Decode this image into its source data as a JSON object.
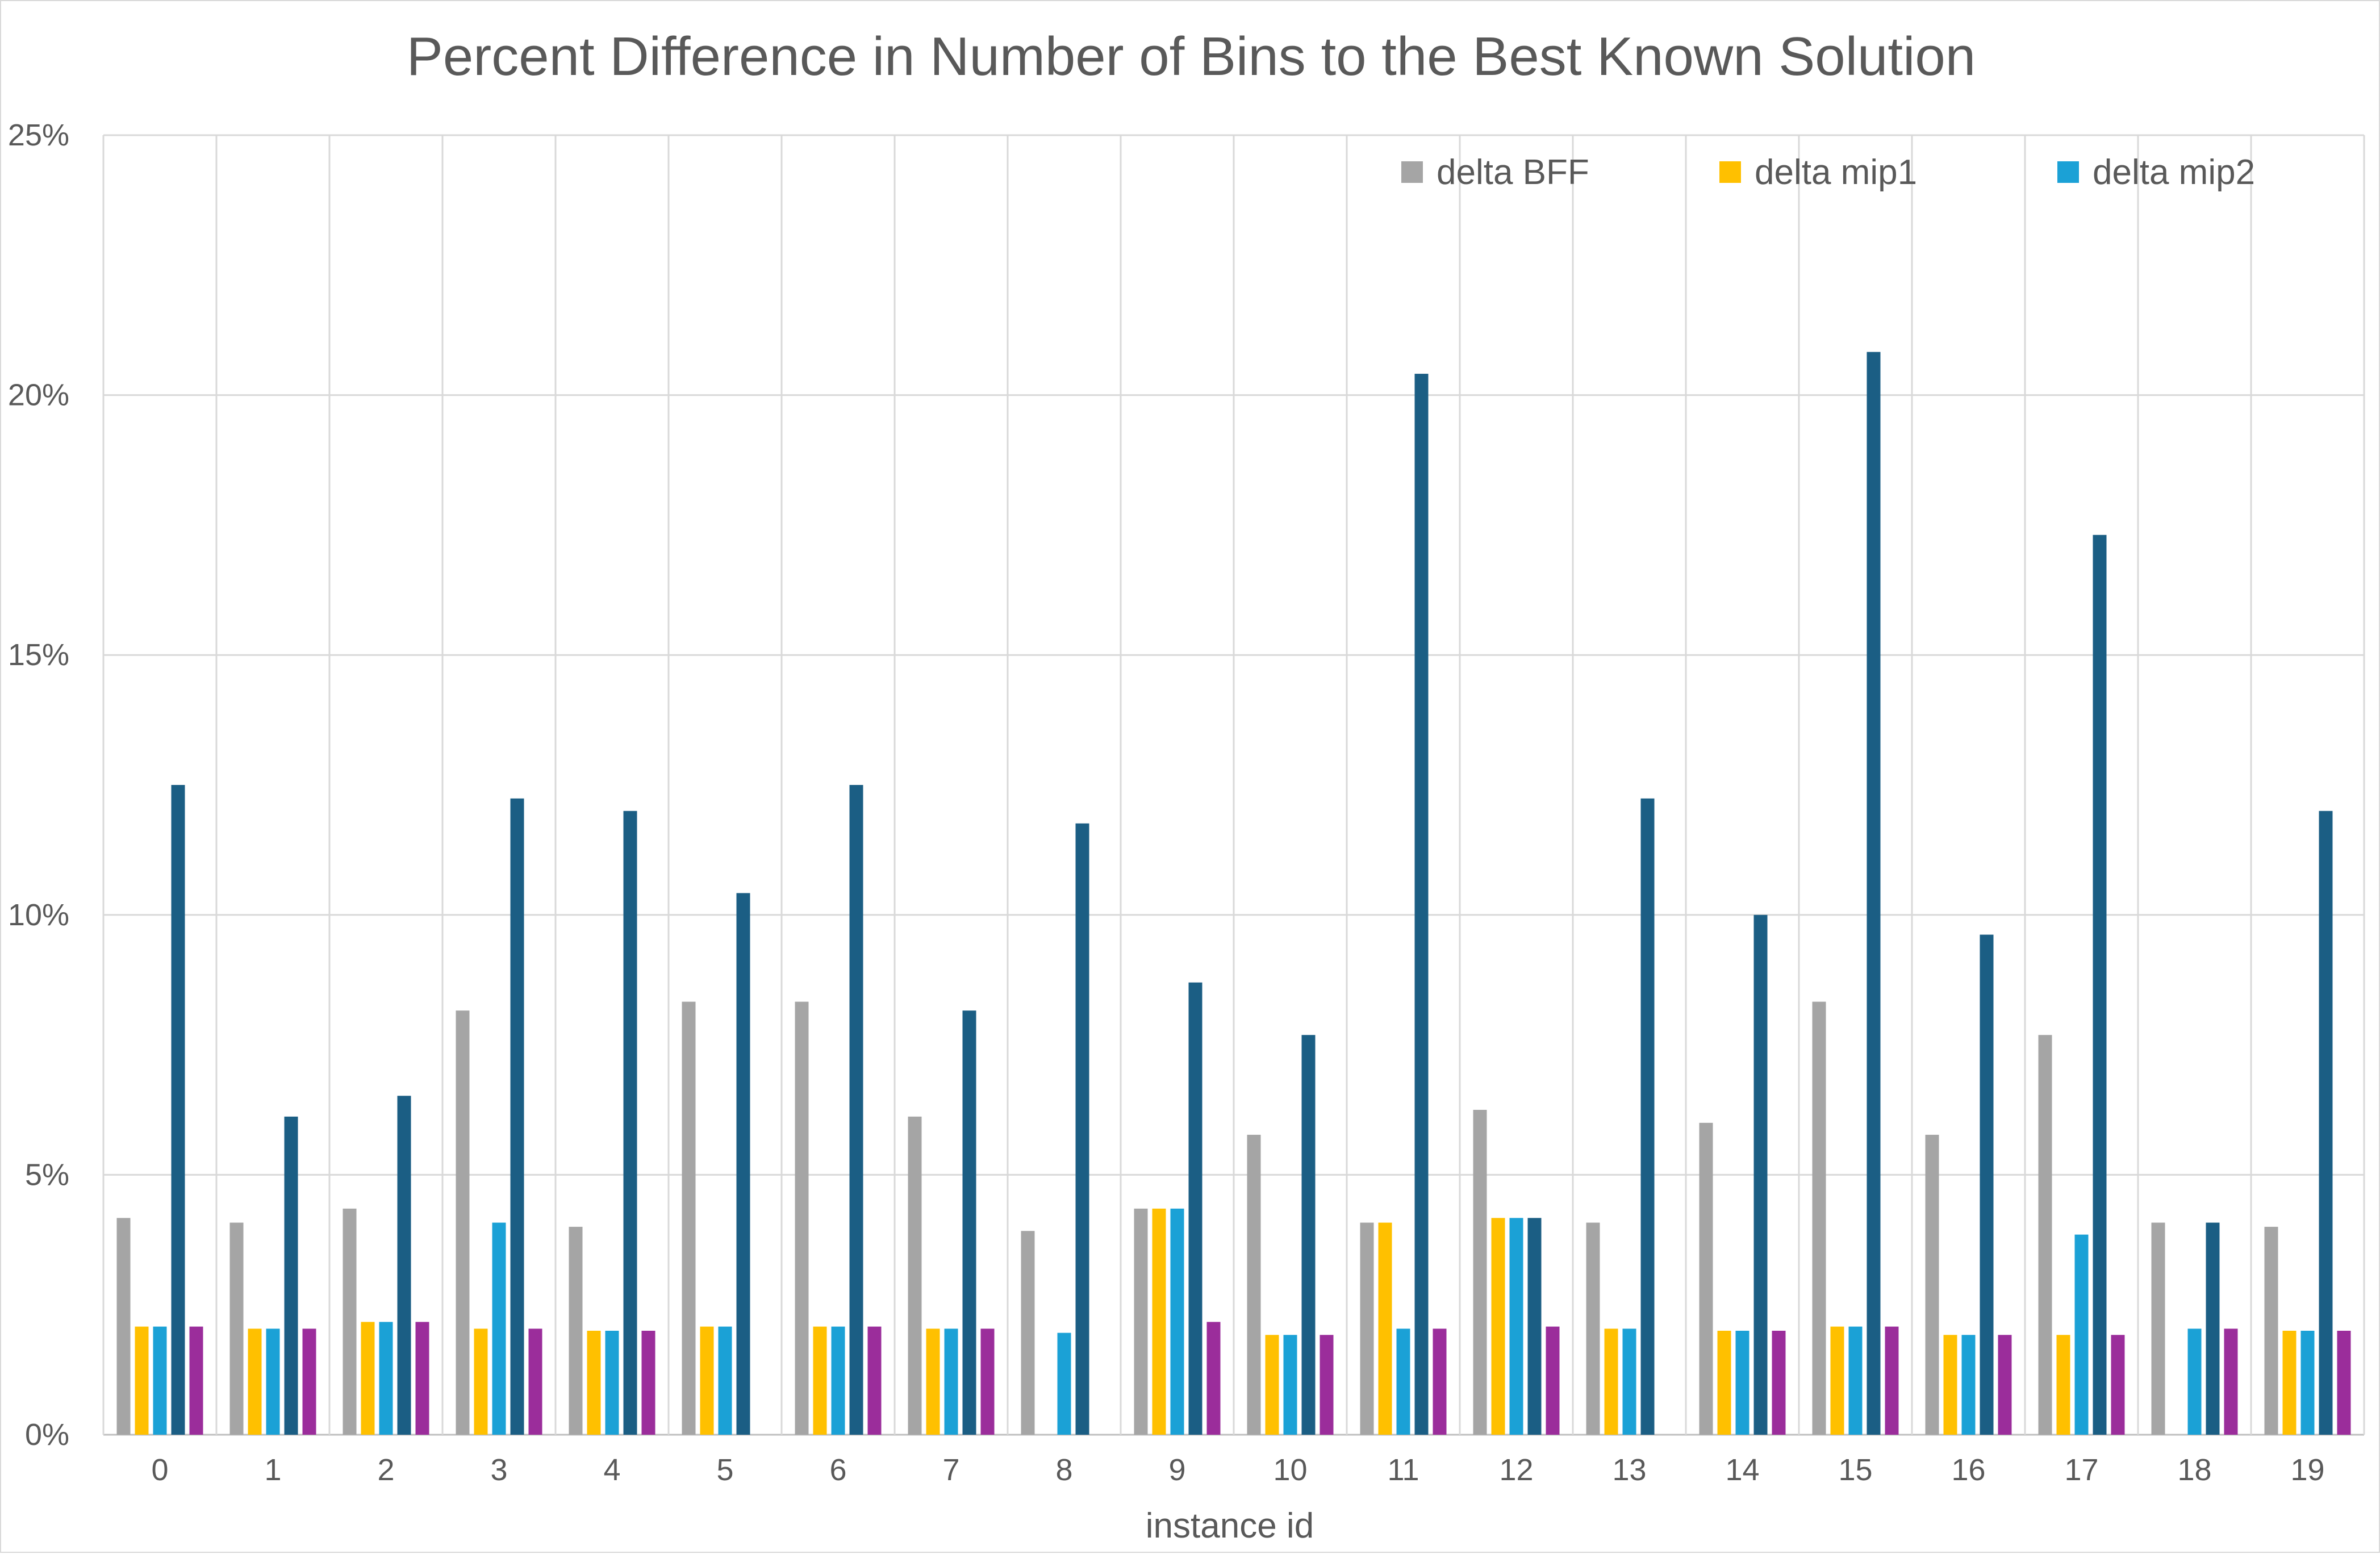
{
  "chart_data": {
    "type": "bar",
    "title": "Percent Difference in Number of Bins to the Best Known Solution",
    "xlabel": "instance id",
    "ylabel": "",
    "ylim": [
      0,
      25
    ],
    "yticks": [
      "0%",
      "5%",
      "10%",
      "15%",
      "20%",
      "25%"
    ],
    "grid": true,
    "legend_position": "top-right",
    "categories": [
      "0",
      "1",
      "2",
      "3",
      "4",
      "5",
      "6",
      "7",
      "8",
      "9",
      "10",
      "11",
      "12",
      "13",
      "14",
      "15",
      "16",
      "17",
      "18",
      "19"
    ],
    "series": [
      {
        "name": "delta BFF",
        "color": "#a5a5a5",
        "values": [
          4.17,
          4.08,
          4.35,
          8.16,
          4.0,
          8.33,
          8.33,
          6.12,
          3.92,
          4.35,
          5.77,
          4.08,
          6.25,
          4.08,
          6.0,
          8.33,
          5.77,
          7.69,
          4.08,
          4.0
        ]
      },
      {
        "name": "delta mip1",
        "color": "#ffc000",
        "values": [
          2.08,
          2.04,
          2.17,
          2.04,
          2.0,
          2.08,
          2.08,
          2.04,
          0,
          4.35,
          1.92,
          4.08,
          4.17,
          2.04,
          2.0,
          2.08,
          1.92,
          1.92,
          0,
          2.0
        ]
      },
      {
        "name": "delta mip2",
        "color": "#1ba1d6",
        "values": [
          2.08,
          2.04,
          2.17,
          4.08,
          2.0,
          2.08,
          2.08,
          2.04,
          1.96,
          4.35,
          1.92,
          2.04,
          4.17,
          2.04,
          2.0,
          2.08,
          1.92,
          3.85,
          2.04,
          2.0
        ]
      },
      {
        "name": "",
        "color": "#1b5e84",
        "values": [
          12.5,
          6.12,
          6.52,
          12.24,
          12.0,
          10.42,
          12.5,
          8.16,
          11.76,
          8.7,
          7.69,
          20.41,
          4.17,
          12.24,
          10.0,
          20.83,
          9.62,
          17.31,
          4.08,
          12.0
        ]
      },
      {
        "name": "",
        "color": "#9b2d9b",
        "values": [
          2.08,
          2.04,
          2.17,
          2.04,
          2.0,
          0,
          2.08,
          2.04,
          0,
          2.17,
          1.92,
          2.04,
          2.08,
          0,
          2.0,
          2.08,
          1.92,
          1.92,
          2.04,
          2.0
        ]
      }
    ]
  }
}
